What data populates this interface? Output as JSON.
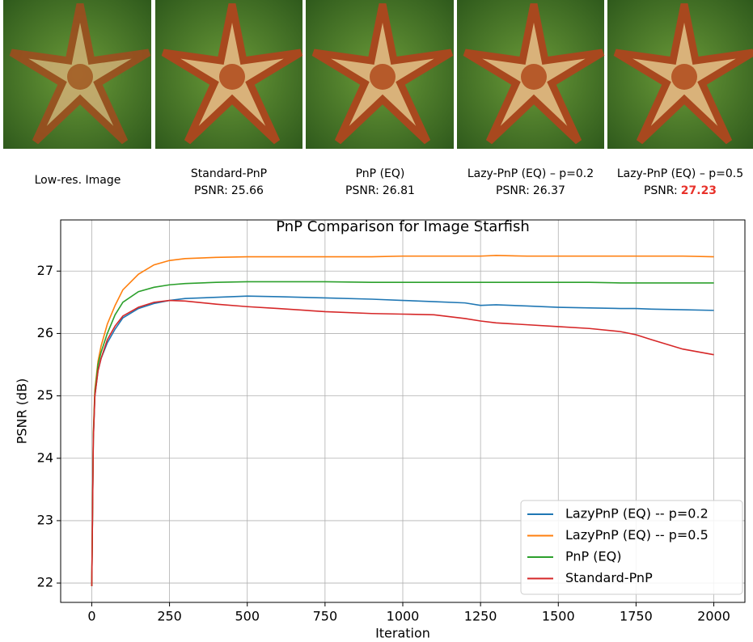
{
  "panels": [
    {
      "caption": "Low-res. Image"
    },
    {
      "caption": "Standard-PnP",
      "psnr_label": "PSNR:",
      "psnr": 25.66
    },
    {
      "caption": "PnP (EQ)",
      "psnr_label": "PSNR:",
      "psnr": 26.81
    },
    {
      "caption": "Lazy-PnP (EQ) – p=0.2",
      "psnr_label": "PSNR:",
      "psnr": 26.37
    },
    {
      "caption": "Lazy-PnP (EQ) – p=0.5",
      "psnr_label": "PSNR:",
      "psnr": 27.23,
      "highlight": true
    }
  ],
  "chart_data": {
    "type": "line",
    "title": "PnP Comparison for Image Starfish",
    "x_label": "Iteration",
    "y_label": "PSNR (dB)",
    "x": [
      0,
      5,
      10,
      20,
      30,
      50,
      75,
      100,
      150,
      200,
      250,
      300,
      400,
      500,
      600,
      750,
      900,
      1000,
      1100,
      1200,
      1250,
      1300,
      1400,
      1500,
      1600,
      1700,
      1750,
      1800,
      1900,
      2000
    ],
    "series": [
      {
        "name": "LazyPnP (EQ) -- p=0.2",
        "color": "#1f77b4",
        "values": [
          21.95,
          24.3,
          25.0,
          25.4,
          25.6,
          25.85,
          26.07,
          26.25,
          26.4,
          26.48,
          26.53,
          26.56,
          26.58,
          26.6,
          26.59,
          26.57,
          26.55,
          26.53,
          26.51,
          26.49,
          26.45,
          26.46,
          26.44,
          26.42,
          26.41,
          26.4,
          26.4,
          26.39,
          26.38,
          26.37
        ]
      },
      {
        "name": "LazyPnP (EQ) -- p=0.5",
        "color": "#ff7f0e",
        "values": [
          21.95,
          24.4,
          25.1,
          25.55,
          25.8,
          26.15,
          26.45,
          26.7,
          26.95,
          27.1,
          27.17,
          27.2,
          27.22,
          27.23,
          27.23,
          27.23,
          27.23,
          27.24,
          27.24,
          27.24,
          27.24,
          27.25,
          27.24,
          27.24,
          27.24,
          27.24,
          27.24,
          27.24,
          27.24,
          27.23
        ]
      },
      {
        "name": "PnP (EQ)",
        "color": "#2ca02c",
        "values": [
          21.95,
          24.35,
          25.05,
          25.5,
          25.7,
          26.0,
          26.3,
          26.5,
          26.67,
          26.74,
          26.78,
          26.8,
          26.82,
          26.83,
          26.83,
          26.83,
          26.82,
          26.82,
          26.82,
          26.82,
          26.82,
          26.82,
          26.82,
          26.82,
          26.82,
          26.81,
          26.81,
          26.81,
          26.81,
          26.81
        ]
      },
      {
        "name": "Standard-PnP",
        "color": "#d62728",
        "values": [
          21.95,
          24.3,
          25.0,
          25.4,
          25.6,
          25.9,
          26.12,
          26.28,
          26.42,
          26.5,
          26.53,
          26.52,
          26.47,
          26.43,
          26.4,
          26.35,
          26.32,
          26.31,
          26.3,
          26.24,
          26.2,
          26.17,
          26.14,
          26.11,
          26.08,
          26.03,
          25.98,
          25.9,
          25.75,
          25.66
        ]
      }
    ],
    "xlim": [
      -100,
      2100
    ],
    "ylim": [
      21.69,
      27.82
    ],
    "xticks": [
      0,
      250,
      500,
      750,
      1000,
      1250,
      1500,
      1750,
      2000
    ],
    "yticks": [
      22,
      23,
      24,
      25,
      26,
      27
    ],
    "grid": true,
    "legend": "lower right"
  }
}
